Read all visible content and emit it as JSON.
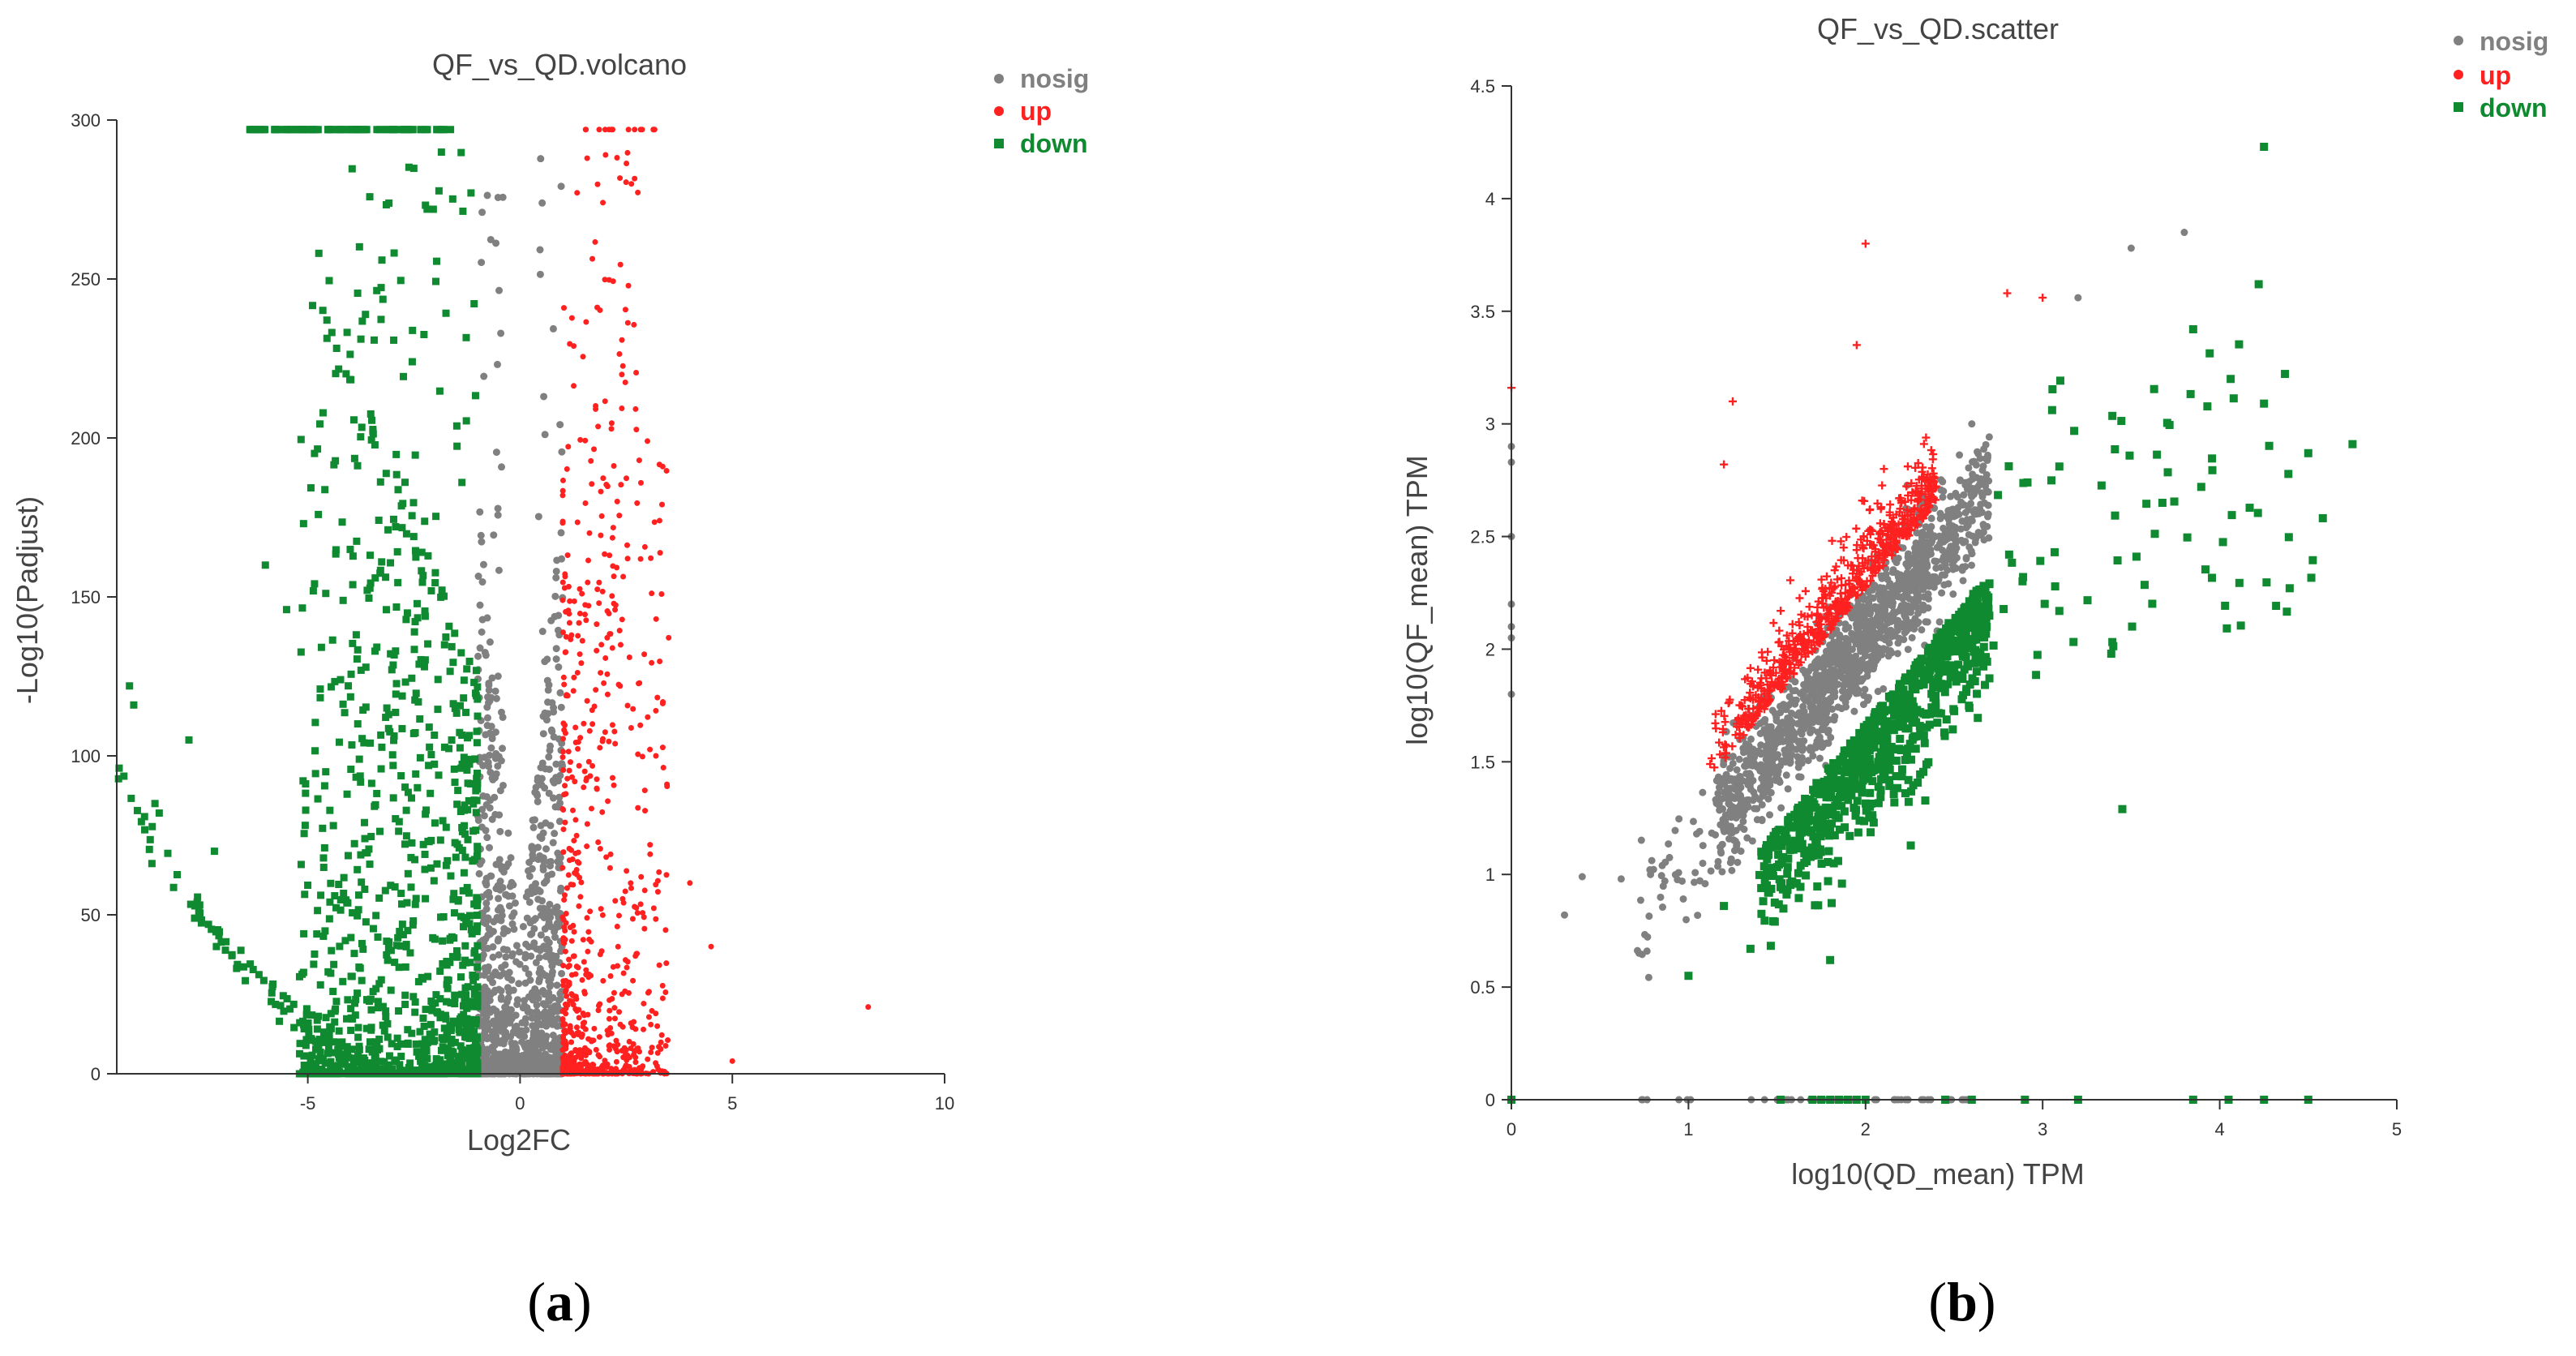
{
  "chart_data": [
    {
      "type": "scatter",
      "panel_label": "(a)",
      "title": "QF_vs_QD.volcano",
      "xlabel": "Log2FC",
      "ylabel": "-Log10(Padjust)",
      "xlim": [
        -9.5,
        10
      ],
      "ylim": [
        0,
        300
      ],
      "x_ticks": [
        -5,
        0,
        5,
        10
      ],
      "y_ticks": [
        0,
        50,
        100,
        150,
        200,
        250,
        300
      ],
      "grid": false,
      "legend_position": "top-right",
      "colors": {
        "nosig": "#808080",
        "up": "#ff2020",
        "down": "#108a30"
      },
      "series": [
        {
          "name": "nosig",
          "marker": "dot",
          "description": "|Log2FC| < 1, dense around 0 up to ~300"
        },
        {
          "name": "up",
          "marker": "dot",
          "description": "Log2FC > 1, max x ~8.2"
        },
        {
          "name": "down",
          "marker": "square",
          "description": "Log2FC < -1, min x ~ -9.5"
        }
      ]
    },
    {
      "type": "scatter",
      "panel_label": "(b)",
      "title": "QF_vs_QD.scatter",
      "xlabel": "log10(QD_mean) TPM",
      "ylabel": "log10(QF_mean) TPM",
      "xlim": [
        0,
        5
      ],
      "ylim": [
        0,
        4.5
      ],
      "x_ticks": [
        0,
        1,
        2,
        3,
        4,
        5
      ],
      "y_ticks": [
        0,
        0.5,
        1,
        1.5,
        2,
        2.5,
        3,
        3.5,
        4,
        4.5
      ],
      "grid": false,
      "legend_position": "top-right",
      "colors": {
        "nosig": "#808080",
        "up": "#ff2020",
        "down": "#108a30"
      },
      "series": [
        {
          "name": "nosig",
          "marker": "dot",
          "description": "along diagonal ~1.0 to 3.8"
        },
        {
          "name": "up",
          "marker": "plus",
          "description": "above diagonal"
        },
        {
          "name": "down",
          "marker": "square",
          "description": "below diagonal"
        }
      ]
    }
  ],
  "legend": {
    "nosig": "nosig",
    "up": "up",
    "down": "down"
  },
  "captions": {
    "a_open": "(",
    "a_letter": "a",
    "a_close": ")",
    "b_open": "(",
    "b_letter": "b",
    "b_close": ")"
  },
  "tick_labels": {
    "volcano_x": [
      "-5",
      "0",
      "5",
      "10"
    ],
    "volcano_y": [
      "0",
      "50",
      "100",
      "150",
      "200",
      "250",
      "300"
    ],
    "scatter_x": [
      "0",
      "1",
      "2",
      "3",
      "4",
      "5"
    ],
    "scatter_y": [
      "0",
      "0.5",
      "1",
      "1.5",
      "2",
      "2.5",
      "3",
      "3.5",
      "4",
      "4.5"
    ]
  }
}
